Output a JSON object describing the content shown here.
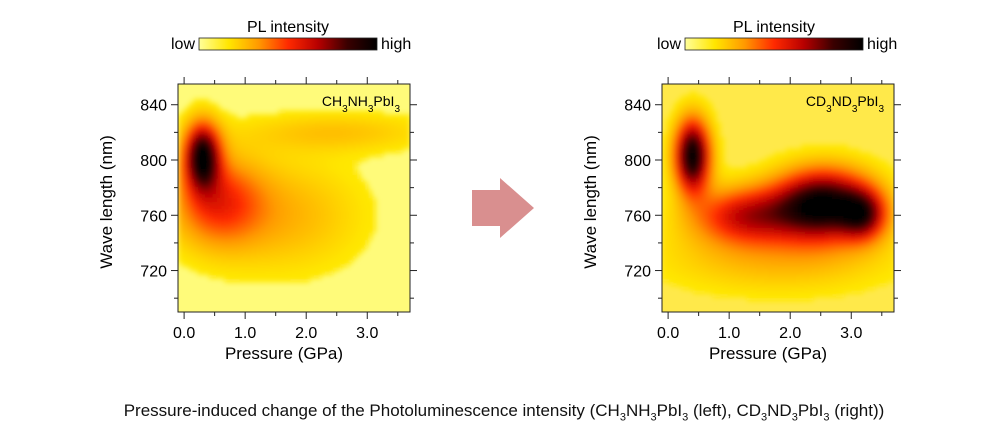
{
  "caption": {
    "text_html": "Pressure-induced change of the Photoluminescence intensity (CH<sub>3</sub>NH<sub>3</sub>PbI<sub>3</sub> (left), CD<sub>3</sub>ND<sub>3</sub>PbI<sub>3</sub> (right))"
  },
  "colorbar": {
    "title": "PL intensity",
    "low_label": "low",
    "high_label": "high",
    "stops": [
      "#ffff9a",
      "#ffe600",
      "#ff9a00",
      "#ff2a00",
      "#b80000",
      "#3a0000",
      "#000000"
    ]
  },
  "arrow": {
    "color": "#d98f8f"
  },
  "chart_data": [
    {
      "type": "heatmap",
      "id": "left",
      "sample_html": "CH<tspan baseline-shift='sub' font-size='10'>3</tspan>NH<tspan baseline-shift='sub' font-size='10'>3</tspan>PbI<tspan baseline-shift='sub' font-size='10'>3</tspan>",
      "xlabel": "Pressure (GPa)",
      "ylabel": "Wave length (nm)",
      "xlim": [
        -0.1,
        3.7
      ],
      "ylim": [
        690,
        855
      ],
      "xticks": [
        0.0,
        1.0,
        2.0,
        3.0
      ],
      "xtick_labels": [
        "0.0",
        "1.0",
        "2.0",
        "3.0"
      ],
      "yticks": [
        720,
        760,
        800,
        840
      ],
      "ytick_labels": [
        "720",
        "760",
        "800",
        "840"
      ],
      "background_color": "#fffb7a",
      "features": [
        {
          "x": 0.3,
          "y": 803,
          "sx": 0.2,
          "sy": 16,
          "amp": 0.95
        },
        {
          "x": 0.55,
          "y": 770,
          "sx": 0.5,
          "sy": 22,
          "amp": 0.4
        },
        {
          "x": 1.6,
          "y": 760,
          "sx": 0.9,
          "sy": 28,
          "amp": 0.18
        },
        {
          "x": 2.5,
          "y": 820,
          "sx": 1.1,
          "sy": 10,
          "amp": 0.14
        }
      ]
    },
    {
      "type": "heatmap",
      "id": "right",
      "sample_html": "CD<tspan baseline-shift='sub' font-size='10'>3</tspan>ND<tspan baseline-shift='sub' font-size='10'>3</tspan>PbI<tspan baseline-shift='sub' font-size='10'>3</tspan>",
      "xlabel": "Pressure (GPa)",
      "ylabel": "Wave length (nm)",
      "xlim": [
        -0.1,
        3.7
      ],
      "ylim": [
        690,
        855
      ],
      "xticks": [
        0.0,
        1.0,
        2.0,
        3.0
      ],
      "xtick_labels": [
        "0.0",
        "1.0",
        "2.0",
        "3.0"
      ],
      "yticks": [
        720,
        760,
        800,
        840
      ],
      "ytick_labels": [
        "720",
        "760",
        "800",
        "840"
      ],
      "background_color": "#ffe94a",
      "features": [
        {
          "x": 0.4,
          "y": 803,
          "sx": 0.2,
          "sy": 18,
          "amp": 1.0
        },
        {
          "x": 1.3,
          "y": 760,
          "sx": 0.6,
          "sy": 14,
          "amp": 0.55
        },
        {
          "x": 2.55,
          "y": 768,
          "sx": 0.55,
          "sy": 17,
          "amp": 1.0
        },
        {
          "x": 3.2,
          "y": 760,
          "sx": 0.25,
          "sy": 12,
          "amp": 0.55
        },
        {
          "x": 1.8,
          "y": 730,
          "sx": 1.3,
          "sy": 18,
          "amp": 0.18
        }
      ]
    }
  ]
}
